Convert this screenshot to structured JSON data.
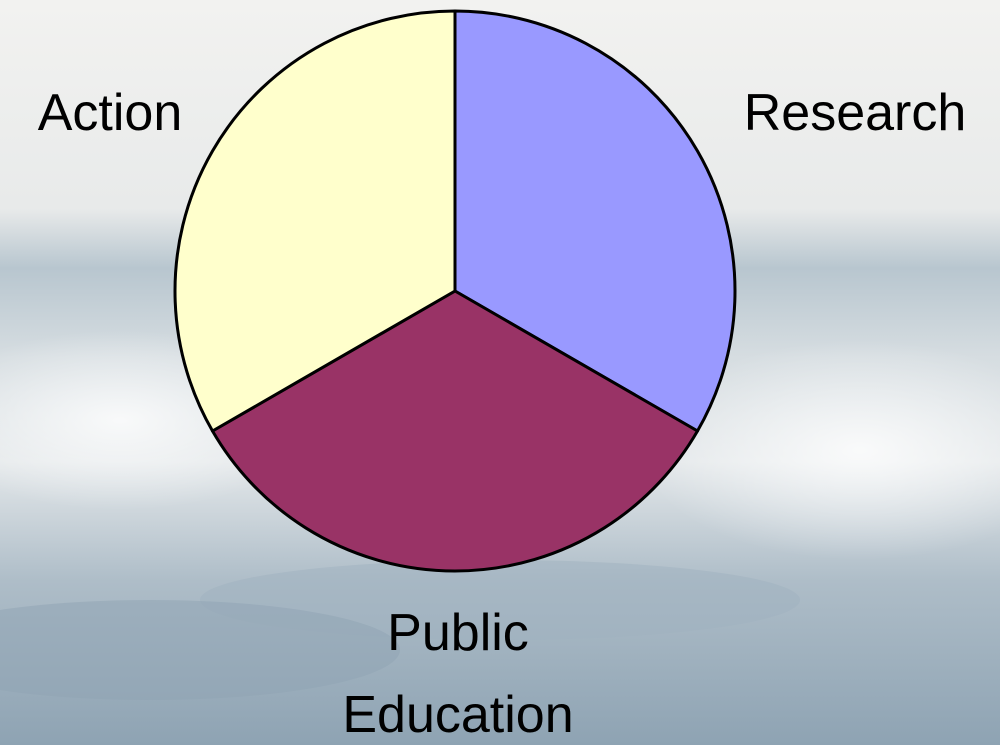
{
  "chart_data": {
    "type": "pie",
    "categories": [
      "Research",
      "Public Education",
      "Action"
    ],
    "values": [
      33.3,
      33.3,
      33.3
    ],
    "colors": [
      "#9999ff",
      "#993366",
      "#ffffcc"
    ]
  }
}
